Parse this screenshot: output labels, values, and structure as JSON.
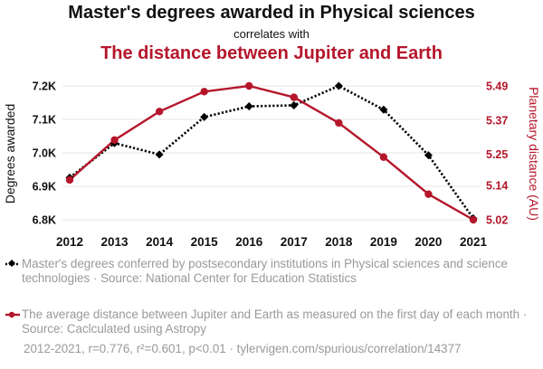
{
  "header": {
    "title": "Master's degrees awarded in Physical sciences",
    "subtitle": "correlates with",
    "title2": "The distance between Jupiter and Earth"
  },
  "legend": [
    {
      "label": "Master's degrees conferred by postsecondary institutions in Physical sciences and science technologies · Source: National Center for Education Statistics"
    },
    {
      "label": "The average distance between Jupiter and Earth as measured on the first day of each month · Source: Caclculated using Astropy"
    }
  ],
  "footer": {
    "text": "2012-2021, r=0.776, r²=0.601, p<0.01 · tylervigen.com/spurious/correlation/14377"
  },
  "colors": {
    "series1": "#000000",
    "series2": "#b5162b",
    "grid": "#e6e6e6"
  },
  "chart_data": {
    "type": "line",
    "x": [
      2012,
      2013,
      2014,
      2015,
      2016,
      2017,
      2018,
      2019,
      2020,
      2021
    ],
    "y_left": {
      "label": "Degrees awarded",
      "ticks": [
        6.8,
        6.9,
        7.0,
        7.1,
        7.2
      ],
      "tick_labels": [
        "6.8K",
        "6.9K",
        "7.0K",
        "7.1K",
        "7.2K"
      ],
      "range": [
        6.8,
        7.2
      ]
    },
    "y_right": {
      "label": "Planetary distance (AU)",
      "ticks": [
        5.02,
        5.14,
        5.25,
        5.37,
        5.49
      ],
      "tick_labels": [
        "5.02",
        "5.14",
        "5.25",
        "5.37",
        "5.49"
      ],
      "range": [
        5.02,
        5.49
      ]
    },
    "series": [
      {
        "axis": "left",
        "style": "dotted",
        "marker": "diamond",
        "color": "#000000",
        "values": [
          6.926,
          7.029,
          6.995,
          7.107,
          7.139,
          7.142,
          7.2,
          7.129,
          6.993,
          6.804
        ]
      },
      {
        "axis": "right",
        "style": "solid",
        "marker": "circle",
        "color": "#b5162b",
        "values": [
          5.16,
          5.3,
          5.4,
          5.47,
          5.49,
          5.45,
          5.36,
          5.24,
          5.11,
          5.02
        ]
      }
    ],
    "grid": true,
    "legend_position": "bottom"
  }
}
